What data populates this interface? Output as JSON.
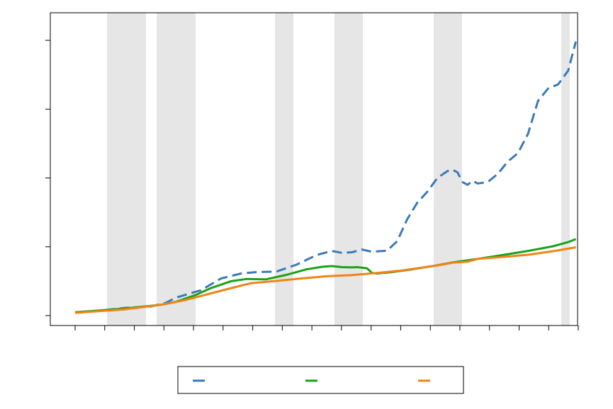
{
  "chart_data": {
    "type": "line",
    "title": "",
    "xlabel": "",
    "ylabel": "",
    "tick_labels_visible": false,
    "x_range": [
      0,
      100
    ],
    "y_range": [
      0,
      100
    ],
    "x_tick_count": 18,
    "y_tick_count": 5,
    "grid": false,
    "legend_placement": "bottom-center",
    "recession_bands": [
      [
        6.34,
        14.08
      ],
      [
        16.2,
        23.94
      ],
      [
        39.72,
        43.38
      ],
      [
        51.55,
        57.18
      ],
      [
        71.27,
        76.9
      ],
      [
        96.62,
        98.31
      ]
    ],
    "series": [
      {
        "color": "#3a7ab8",
        "dash": "dashed",
        "points": [
          [
            0,
            1.1
          ],
          [
            5,
            1.8
          ],
          [
            10,
            2.8
          ],
          [
            15,
            3.3
          ],
          [
            18,
            4.6
          ],
          [
            20,
            6.5
          ],
          [
            25,
            9.2
          ],
          [
            29,
            13.5
          ],
          [
            33,
            15.3
          ],
          [
            36,
            15.8
          ],
          [
            40,
            16.0
          ],
          [
            44,
            18.5
          ],
          [
            48,
            22.0
          ],
          [
            51,
            23.5
          ],
          [
            53,
            22.8
          ],
          [
            55,
            23.0
          ],
          [
            57,
            24.0
          ],
          [
            59,
            23.2
          ],
          [
            62,
            23.6
          ],
          [
            64,
            27.0
          ],
          [
            66,
            35.0
          ],
          [
            68,
            41.0
          ],
          [
            70,
            45.0
          ],
          [
            72,
            50.0
          ],
          [
            74,
            52.5
          ],
          [
            75,
            53.0
          ],
          [
            76,
            52.0
          ],
          [
            77,
            48.5
          ],
          [
            78,
            47.5
          ],
          [
            79,
            49.0
          ],
          [
            80,
            48.0
          ],
          [
            82,
            48.5
          ],
          [
            84,
            51.5
          ],
          [
            86,
            56.0
          ],
          [
            88,
            59.0
          ],
          [
            90,
            66.0
          ],
          [
            92,
            78.0
          ],
          [
            94,
            82.5
          ],
          [
            96,
            84.0
          ],
          [
            98,
            89.0
          ],
          [
            99.5,
            99.5
          ]
        ]
      },
      {
        "color": "#19a319",
        "dash": "solid",
        "points": [
          [
            0,
            1.2
          ],
          [
            10,
            2.6
          ],
          [
            17,
            3.9
          ],
          [
            20,
            5.0
          ],
          [
            24,
            7.5
          ],
          [
            27,
            10.0
          ],
          [
            31,
            12.5
          ],
          [
            34,
            13.3
          ],
          [
            38,
            13.2
          ],
          [
            42,
            14.8
          ],
          [
            46,
            16.8
          ],
          [
            49,
            17.7
          ],
          [
            51,
            18.0
          ],
          [
            53,
            17.6
          ],
          [
            55,
            17.5
          ],
          [
            56,
            17.6
          ],
          [
            58,
            17.2
          ],
          [
            59,
            15.5
          ],
          [
            60,
            15.3
          ],
          [
            63,
            15.8
          ],
          [
            67,
            16.8
          ],
          [
            72,
            18.3
          ],
          [
            75,
            19.3
          ],
          [
            80,
            20.6
          ],
          [
            85,
            22.0
          ],
          [
            90,
            23.5
          ],
          [
            95,
            25.2
          ],
          [
            98,
            26.7
          ],
          [
            99.5,
            27.8
          ]
        ]
      },
      {
        "color": "#f28314",
        "dash": "solid",
        "points": [
          [
            0,
            1.0
          ],
          [
            10,
            2.3
          ],
          [
            17,
            3.9
          ],
          [
            22,
            5.7
          ],
          [
            26,
            7.6
          ],
          [
            30,
            9.5
          ],
          [
            35,
            11.8
          ],
          [
            40,
            12.6
          ],
          [
            45,
            13.5
          ],
          [
            50,
            14.3
          ],
          [
            55,
            14.7
          ],
          [
            60,
            15.5
          ],
          [
            65,
            16.4
          ],
          [
            70,
            17.7
          ],
          [
            73,
            18.5
          ],
          [
            75,
            19.2
          ],
          [
            78,
            19.6
          ],
          [
            80,
            20.6
          ],
          [
            85,
            21.3
          ],
          [
            90,
            22.1
          ],
          [
            95,
            23.4
          ],
          [
            99.5,
            24.8
          ]
        ]
      }
    ]
  }
}
